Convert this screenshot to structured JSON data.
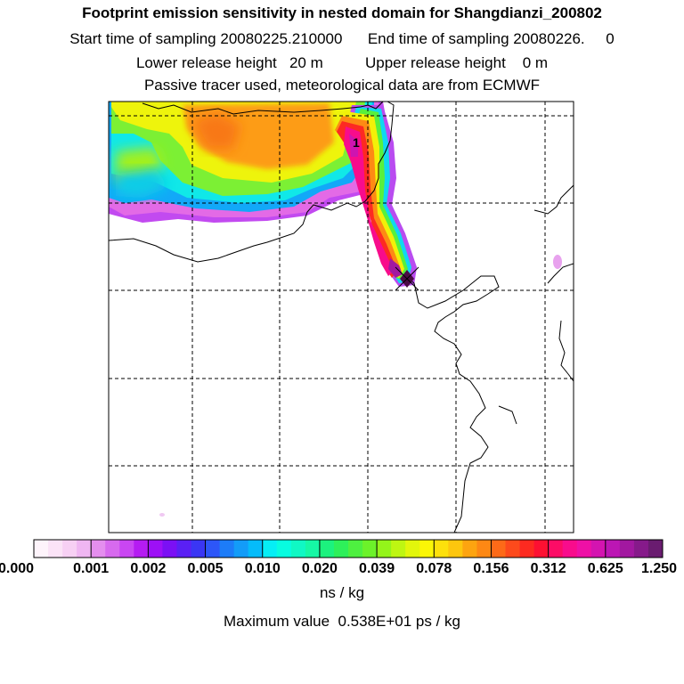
{
  "header": {
    "title": "Footprint emission sensitivity in nested domain for Shangdianzi_200802",
    "start_label": "Start time of sampling",
    "start_value": "20080225.210000",
    "end_label": "End time of sampling",
    "end_value": "20080226.",
    "end_extra": "0",
    "lower_label": "Lower release height",
    "lower_value": "20 m",
    "upper_label": "Upper release height",
    "upper_value": "0 m",
    "tracer_text": "Passive tracer used, meteorological data are from ECMWF"
  },
  "map": {
    "marker_label": "1",
    "background": "#ffffff",
    "grid_style": "dashed"
  },
  "colorbar": {
    "ticks": [
      "0.000",
      "0.001",
      "0.002",
      "0.005",
      "0.010",
      "0.020",
      "0.039",
      "0.078",
      "0.156",
      "0.312",
      "0.625",
      "1.250"
    ],
    "unit": "ns / kg",
    "colors": [
      "#fef4fb",
      "#fbe3f7",
      "#f7d0f4",
      "#efb6f2",
      "#e48eee",
      "#d76aee",
      "#c946f2",
      "#b51cf2",
      "#9d10f6",
      "#7b10f4",
      "#5a20f4",
      "#3a36f4",
      "#2d56f8",
      "#1d7cf8",
      "#139cf8",
      "#05bcfa",
      "#06eef5",
      "#08fce0",
      "#10f8c4",
      "#16f8a5",
      "#1cf27e",
      "#2ef05a",
      "#4ef040",
      "#6cf22a",
      "#94f41a",
      "#bef612",
      "#e2f60c",
      "#fbf606",
      "#fde00c",
      "#fdc60e",
      "#fda410",
      "#fd8814",
      "#fd6a18",
      "#fd4a1c",
      "#fd2a20",
      "#fd1032",
      "#fc0c66",
      "#f80c8c",
      "#ee10a6",
      "#d414b0",
      "#bc16b4",
      "#a218a0",
      "#861a8a",
      "#6a1c70"
    ]
  },
  "footer": {
    "max_label": "Maximum value",
    "max_value": "0.538E+01 ps / kg"
  }
}
